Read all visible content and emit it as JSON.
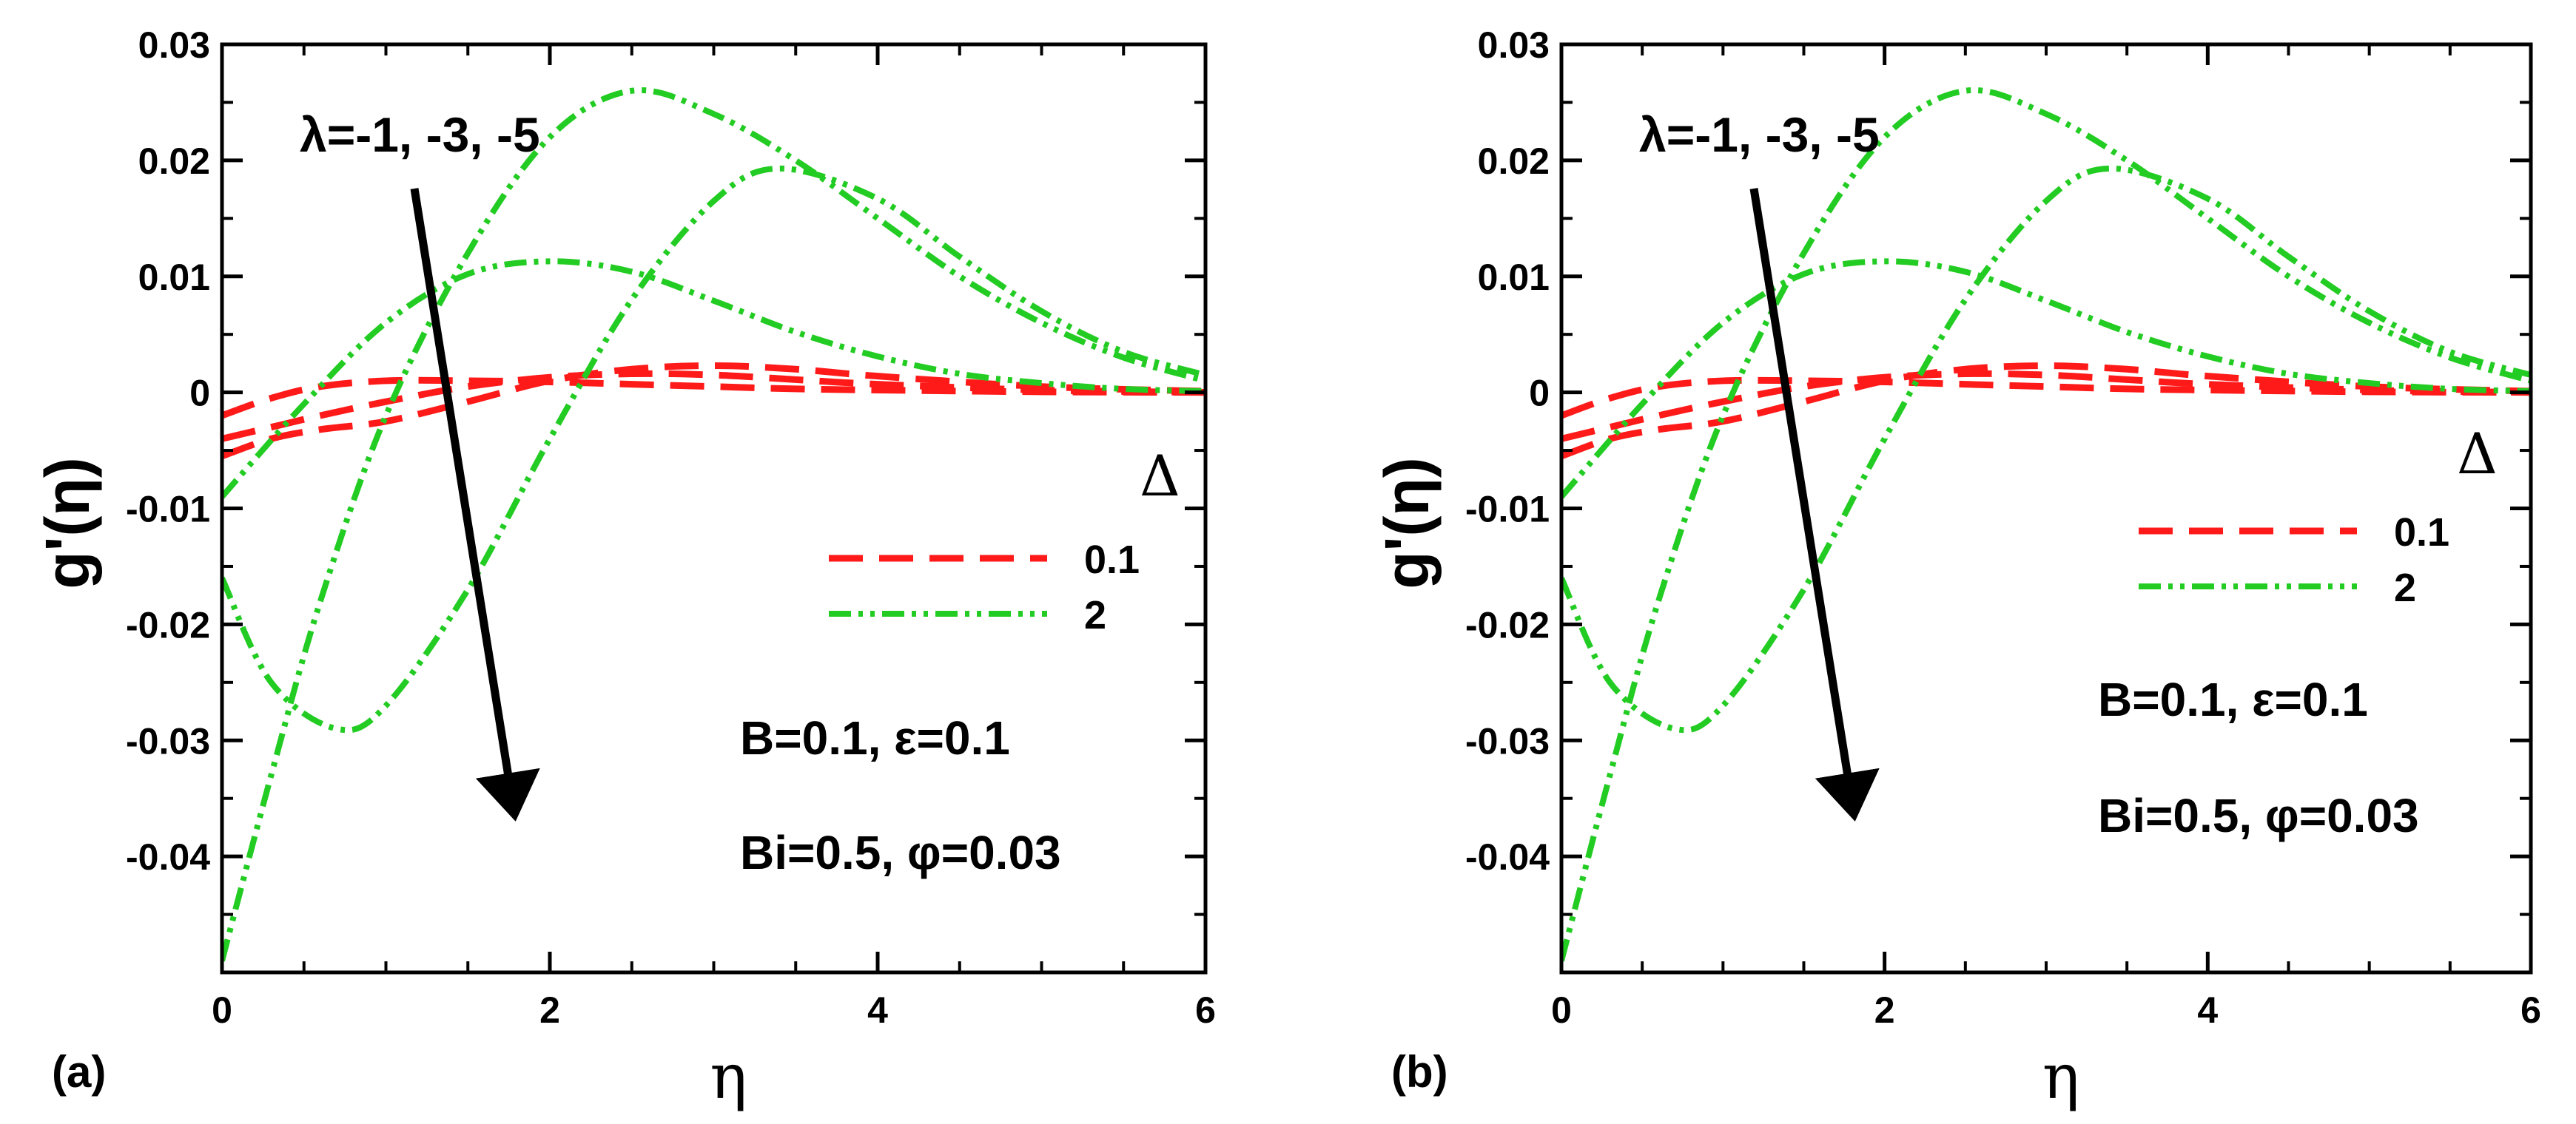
{
  "chart_data": [
    {
      "type": "line",
      "panel_label": "(a)",
      "xlabel": "η",
      "ylabel": "g'(η)",
      "xlim": [
        0,
        6
      ],
      "ylim": [
        -0.05,
        0.03
      ],
      "xticks": [
        "0",
        "2",
        "4",
        "6"
      ],
      "yticks": [
        "0.03",
        "0.02",
        "0.01",
        "0",
        "-0.01",
        "-0.02",
        "-0.03",
        "-0.04"
      ],
      "grid": false,
      "legend": {
        "title": "Δ",
        "placement": "middle-right",
        "entries": [
          {
            "label": "0.1",
            "color": "#ff1a1a",
            "style": "dashed"
          },
          {
            "label": "2",
            "color": "#22cc22",
            "style": "dash-dot-dot"
          }
        ]
      },
      "annotations": {
        "arrow_label": "λ=-1, -3, -5",
        "params_line1": "B=0.1, ε=0.1",
        "params_line2": "Bi=0.5, φ=0.03"
      },
      "series": [
        {
          "name": "Δ=0.1, λ=-1",
          "color": "#ff1a1a",
          "style": "dashed",
          "x": [
            0,
            0.3,
            0.6,
            1.0,
            1.5,
            2.0,
            2.5,
            3.0,
            3.5,
            4.0,
            5.0,
            6.0
          ],
          "y": [
            -0.002,
            -0.0005,
            0.0005,
            0.001,
            0.001,
            0.0009,
            0.0007,
            0.0005,
            0.0003,
            0.0002,
            5e-05,
            0.0
          ]
        },
        {
          "name": "Δ=0.1, λ=-3",
          "color": "#ff1a1a",
          "style": "dashed",
          "x": [
            0,
            0.3,
            0.6,
            1.0,
            1.5,
            2.0,
            2.5,
            3.0,
            3.5,
            4.0,
            5.0,
            6.0
          ],
          "y": [
            -0.004,
            -0.003,
            -0.002,
            -0.0008,
            0.0005,
            0.0013,
            0.0016,
            0.0015,
            0.0011,
            0.0007,
            0.0002,
            0.0
          ]
        },
        {
          "name": "Δ=0.1, λ=-5",
          "color": "#ff1a1a",
          "style": "dashed",
          "x": [
            0,
            0.3,
            0.6,
            1.0,
            1.5,
            2.0,
            2.5,
            3.0,
            3.5,
            4.0,
            5.0,
            6.0
          ],
          "y": [
            -0.0055,
            -0.004,
            -0.0032,
            -0.0025,
            -0.0008,
            0.001,
            0.002,
            0.0023,
            0.002,
            0.0014,
            0.0005,
            0.0001
          ]
        },
        {
          "name": "Δ=2, λ=-1",
          "color": "#22cc22",
          "style": "dash-dot-dot",
          "x": [
            0,
            0.5,
            1.0,
            1.5,
            2.0,
            2.5,
            3.0,
            3.5,
            4.0,
            4.5,
            5.0,
            5.5,
            6.0
          ],
          "y": [
            -0.009,
            -0.001,
            0.006,
            0.0102,
            0.0113,
            0.0104,
            0.0079,
            0.0052,
            0.0031,
            0.0016,
            0.0008,
            0.0003,
            0.0001
          ]
        },
        {
          "name": "Δ=2, λ=-3",
          "color": "#22cc22",
          "style": "dash-dot-dot",
          "x": [
            0,
            0.3,
            0.7,
            1.0,
            1.5,
            2.0,
            2.5,
            3.0,
            3.4,
            4.0,
            4.5,
            5.0,
            5.5,
            6.0
          ],
          "y": [
            -0.016,
            -0.025,
            -0.029,
            -0.027,
            -0.017,
            -0.004,
            0.008,
            0.0165,
            0.0193,
            0.0167,
            0.0117,
            0.007,
            0.0035,
            0.0015
          ]
        },
        {
          "name": "Δ=2, λ=-5",
          "color": "#22cc22",
          "style": "dash-dot-dot",
          "x": [
            0,
            0.3,
            0.6,
            1.0,
            1.5,
            2.0,
            2.5,
            3.0,
            3.5,
            4.0,
            4.5,
            5.0,
            5.5,
            6.0
          ],
          "y": [
            -0.049,
            -0.033,
            -0.018,
            -0.002,
            0.012,
            0.022,
            0.026,
            0.024,
            0.02,
            0.015,
            0.01,
            0.006,
            0.003,
            0.001
          ]
        }
      ]
    },
    {
      "type": "line",
      "panel_label": "(b)",
      "xlabel": "η",
      "ylabel": "g'(η)",
      "xlim": [
        0,
        6
      ],
      "ylim": [
        -0.05,
        0.03
      ],
      "xticks": [
        "0",
        "2",
        "4",
        "6"
      ],
      "yticks": [
        "0.03",
        "0.02",
        "0.01",
        "0",
        "-0.01",
        "-0.02",
        "-0.03",
        "-0.04"
      ],
      "grid": false,
      "legend": {
        "title": "Δ",
        "placement": "middle-right",
        "entries": [
          {
            "label": "0.1",
            "color": "#ff1a1a",
            "style": "dashed"
          },
          {
            "label": "2",
            "color": "#22cc22",
            "style": "dash-dot-dot"
          }
        ]
      },
      "annotations": {
        "arrow_label": "λ=-1, -3, -5",
        "params_line1": "B=0.1, ε=0.1",
        "params_line2": "Bi=0.5, φ=0.03"
      },
      "series": [
        {
          "name": "Δ=0.1, λ=-1",
          "color": "#ff1a1a",
          "style": "dashed",
          "x": [
            0,
            0.3,
            0.6,
            1.0,
            1.5,
            2.0,
            2.5,
            3.0,
            3.5,
            4.0,
            5.0,
            6.0
          ],
          "y": [
            -0.002,
            -0.0005,
            0.0005,
            0.001,
            0.001,
            0.0009,
            0.0007,
            0.0005,
            0.0003,
            0.0002,
            5e-05,
            0.0
          ]
        },
        {
          "name": "Δ=0.1, λ=-3",
          "color": "#ff1a1a",
          "style": "dashed",
          "x": [
            0,
            0.3,
            0.6,
            1.0,
            1.5,
            2.0,
            2.5,
            3.0,
            3.5,
            4.0,
            5.0,
            6.0
          ],
          "y": [
            -0.004,
            -0.003,
            -0.002,
            -0.0008,
            0.0005,
            0.0013,
            0.0016,
            0.0015,
            0.0011,
            0.0007,
            0.0002,
            0.0
          ]
        },
        {
          "name": "Δ=0.1, λ=-5",
          "color": "#ff1a1a",
          "style": "dashed",
          "x": [
            0,
            0.3,
            0.6,
            1.0,
            1.5,
            2.0,
            2.5,
            3.0,
            3.5,
            4.0,
            5.0,
            6.0
          ],
          "y": [
            -0.0055,
            -0.004,
            -0.0032,
            -0.0025,
            -0.0008,
            0.001,
            0.002,
            0.0023,
            0.002,
            0.0014,
            0.0005,
            0.0001
          ]
        },
        {
          "name": "Δ=2, λ=-1",
          "color": "#22cc22",
          "style": "dash-dot-dot",
          "x": [
            0,
            0.5,
            1.0,
            1.5,
            2.0,
            2.5,
            3.0,
            3.5,
            4.0,
            4.5,
            5.0,
            5.5,
            6.0
          ],
          "y": [
            -0.009,
            -0.001,
            0.006,
            0.0102,
            0.0113,
            0.0104,
            0.0079,
            0.0052,
            0.0031,
            0.0016,
            0.0008,
            0.0003,
            0.0001
          ]
        },
        {
          "name": "Δ=2, λ=-3",
          "color": "#22cc22",
          "style": "dash-dot-dot",
          "x": [
            0,
            0.3,
            0.7,
            1.0,
            1.5,
            2.0,
            2.5,
            3.0,
            3.4,
            4.0,
            4.5,
            5.0,
            5.5,
            6.0
          ],
          "y": [
            -0.016,
            -0.025,
            -0.029,
            -0.027,
            -0.017,
            -0.004,
            0.008,
            0.0165,
            0.0193,
            0.0167,
            0.0117,
            0.007,
            0.0035,
            0.0015
          ]
        },
        {
          "name": "Δ=2, λ=-5",
          "color": "#22cc22",
          "style": "dash-dot-dot",
          "x": [
            0,
            0.3,
            0.6,
            1.0,
            1.5,
            2.0,
            2.5,
            3.0,
            3.5,
            4.0,
            4.5,
            5.0,
            5.5,
            6.0
          ],
          "y": [
            -0.049,
            -0.033,
            -0.018,
            -0.002,
            0.012,
            0.022,
            0.026,
            0.024,
            0.02,
            0.015,
            0.01,
            0.006,
            0.003,
            0.001
          ]
        }
      ]
    }
  ]
}
